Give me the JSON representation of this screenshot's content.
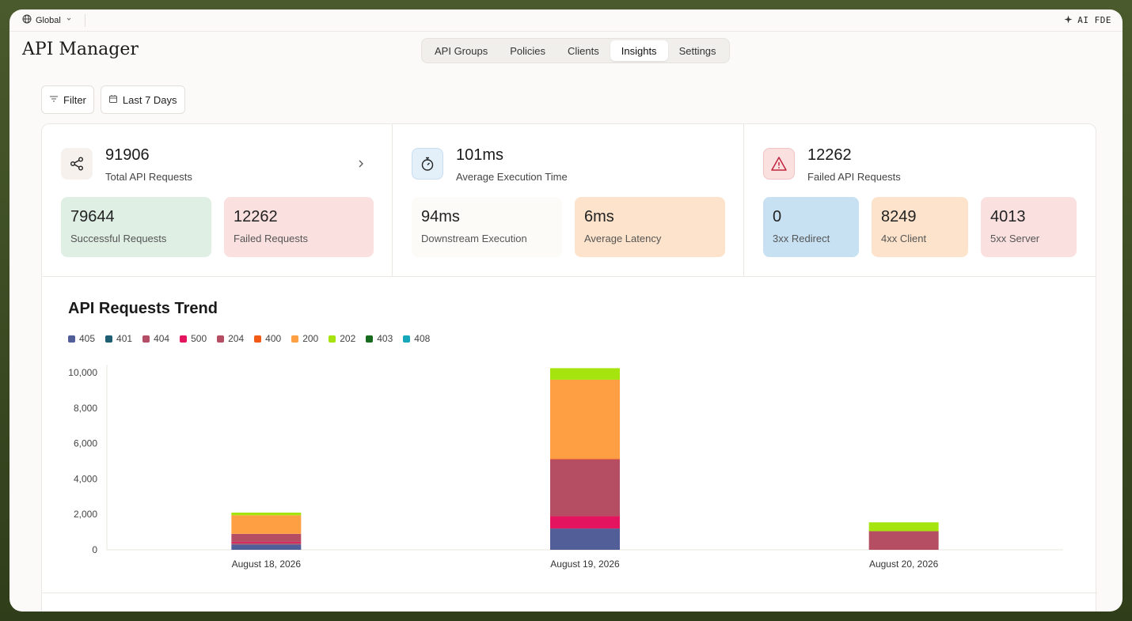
{
  "topbar": {
    "region_label": "Global",
    "assistant_label": "AI FDE"
  },
  "app": {
    "title": "API Manager"
  },
  "tabs": [
    {
      "label": "API Groups",
      "active": false
    },
    {
      "label": "Policies",
      "active": false
    },
    {
      "label": "Clients",
      "active": false
    },
    {
      "label": "Insights",
      "active": true
    },
    {
      "label": "Settings",
      "active": false
    }
  ],
  "toolbar": {
    "filter_label": "Filter",
    "range_label": "Last 7 Days"
  },
  "metrics": {
    "total": {
      "value": "91906",
      "label": "Total API Requests",
      "icon": "share-icon",
      "subs": [
        {
          "value": "79644",
          "label": "Successful Requests",
          "color": "#dfefe4"
        },
        {
          "value": "12262",
          "label": "Failed Requests",
          "color": "#fbe0e0"
        }
      ]
    },
    "latency": {
      "value": "101ms",
      "label": "Average Execution Time",
      "icon": "stopwatch-icon",
      "subs": [
        {
          "value": "94ms",
          "label": "Downstream Execution",
          "color": "#fdfbf7"
        },
        {
          "value": "6ms",
          "label": "Average Latency",
          "color": "#fde3cb"
        }
      ]
    },
    "failed": {
      "value": "12262",
      "label": "Failed API Requests",
      "icon": "warning-icon",
      "subs": [
        {
          "value": "0",
          "label": "3xx Redirect",
          "color": "#c7e1f3"
        },
        {
          "value": "8249",
          "label": "4xx Client",
          "color": "#fde3cb"
        },
        {
          "value": "4013",
          "label": "5xx Server",
          "color": "#fbe0e0"
        }
      ]
    }
  },
  "chart_data": {
    "type": "bar",
    "stacked": true,
    "title": "API Requests Trend",
    "xlabel": "",
    "ylabel": "",
    "ylim": [
      0,
      10000
    ],
    "yticks": [
      "0",
      "2,000",
      "4,000",
      "6,000",
      "8,000",
      "10,000"
    ],
    "categories": [
      "August 18, 2026",
      "August 19, 2026",
      "August 20, 2026"
    ],
    "legend_position": "top-left",
    "grid": false,
    "series": [
      {
        "name": "405",
        "color": "#525e97",
        "values": [
          300,
          1200,
          0
        ]
      },
      {
        "name": "401",
        "color": "#1f5f74",
        "values": [
          0,
          0,
          0
        ]
      },
      {
        "name": "404",
        "color": "#b44d66",
        "values": [
          100,
          0,
          0
        ]
      },
      {
        "name": "500",
        "color": "#e4145e",
        "values": [
          50,
          700,
          0
        ]
      },
      {
        "name": "204",
        "color": "#b54e62",
        "values": [
          450,
          3200,
          1050
        ]
      },
      {
        "name": "400",
        "color": "#f25a16",
        "values": [
          0,
          50,
          0
        ]
      },
      {
        "name": "200",
        "color": "#fd9f42",
        "values": [
          1050,
          4450,
          0
        ]
      },
      {
        "name": "202",
        "color": "#a6e40f",
        "values": [
          150,
          650,
          500
        ]
      },
      {
        "name": "403",
        "color": "#176b1e",
        "values": [
          0,
          0,
          0
        ]
      },
      {
        "name": "408",
        "color": "#16a8ba",
        "values": [
          0,
          0,
          0
        ]
      }
    ]
  }
}
